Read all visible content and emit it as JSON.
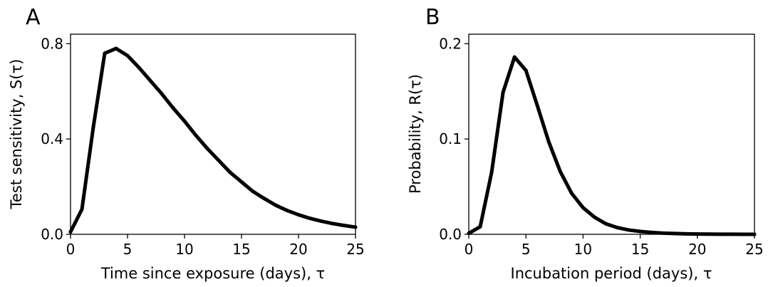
{
  "chart_data": [
    {
      "panel": "A",
      "type": "line",
      "xlabel": "Time since exposure (days), τ",
      "ylabel": "Test sensitivity, S(τ)",
      "xlim": [
        0,
        25
      ],
      "ylim": [
        0,
        0.84
      ],
      "xticks": [
        0,
        5,
        10,
        15,
        20,
        25
      ],
      "xtick_labels": [
        "0",
        "5",
        "10",
        "15",
        "20",
        "25"
      ],
      "yticks": [
        0.0,
        0.4,
        0.8
      ],
      "ytick_labels": [
        "0.0",
        "0.4",
        "0.8"
      ],
      "grid": false,
      "color": "#000000",
      "series": [
        {
          "x": [
            0,
            1,
            2,
            3,
            4,
            5,
            6,
            7,
            8,
            9,
            10,
            11,
            12,
            13,
            14,
            15,
            16,
            17,
            18,
            19,
            20,
            21,
            22,
            23,
            24,
            25
          ],
          "values": [
            0.01,
            0.105,
            0.45,
            0.76,
            0.78,
            0.75,
            0.7,
            0.645,
            0.59,
            0.53,
            0.475,
            0.415,
            0.36,
            0.31,
            0.26,
            0.22,
            0.18,
            0.15,
            0.122,
            0.1,
            0.082,
            0.067,
            0.055,
            0.045,
            0.037,
            0.03
          ]
        }
      ]
    },
    {
      "panel": "B",
      "type": "line",
      "xlabel": "Incubation period (days), τ",
      "ylabel": "Probability, R(τ)",
      "xlim": [
        0,
        25
      ],
      "ylim": [
        0,
        0.21
      ],
      "xticks": [
        0,
        5,
        10,
        15,
        20,
        25
      ],
      "xtick_labels": [
        "0",
        "5",
        "10",
        "15",
        "20",
        "25"
      ],
      "yticks": [
        0.0,
        0.1,
        0.2
      ],
      "ytick_labels": [
        "0.0",
        "0.1",
        "0.2"
      ],
      "grid": false,
      "color": "#000000",
      "series": [
        {
          "x": [
            0,
            1,
            2,
            3,
            4,
            5,
            6,
            7,
            8,
            9,
            10,
            11,
            12,
            13,
            14,
            15,
            16,
            17,
            18,
            19,
            20,
            21,
            22,
            23,
            24,
            25
          ],
          "values": [
            0.001,
            0.008,
            0.065,
            0.149,
            0.186,
            0.172,
            0.135,
            0.097,
            0.066,
            0.043,
            0.028,
            0.018,
            0.011,
            0.007,
            0.0045,
            0.003,
            0.002,
            0.0012,
            0.0008,
            0.0005,
            0.0003,
            0.0002,
            0.0001,
            0.0001,
            0.0,
            0.0
          ]
        }
      ]
    }
  ]
}
